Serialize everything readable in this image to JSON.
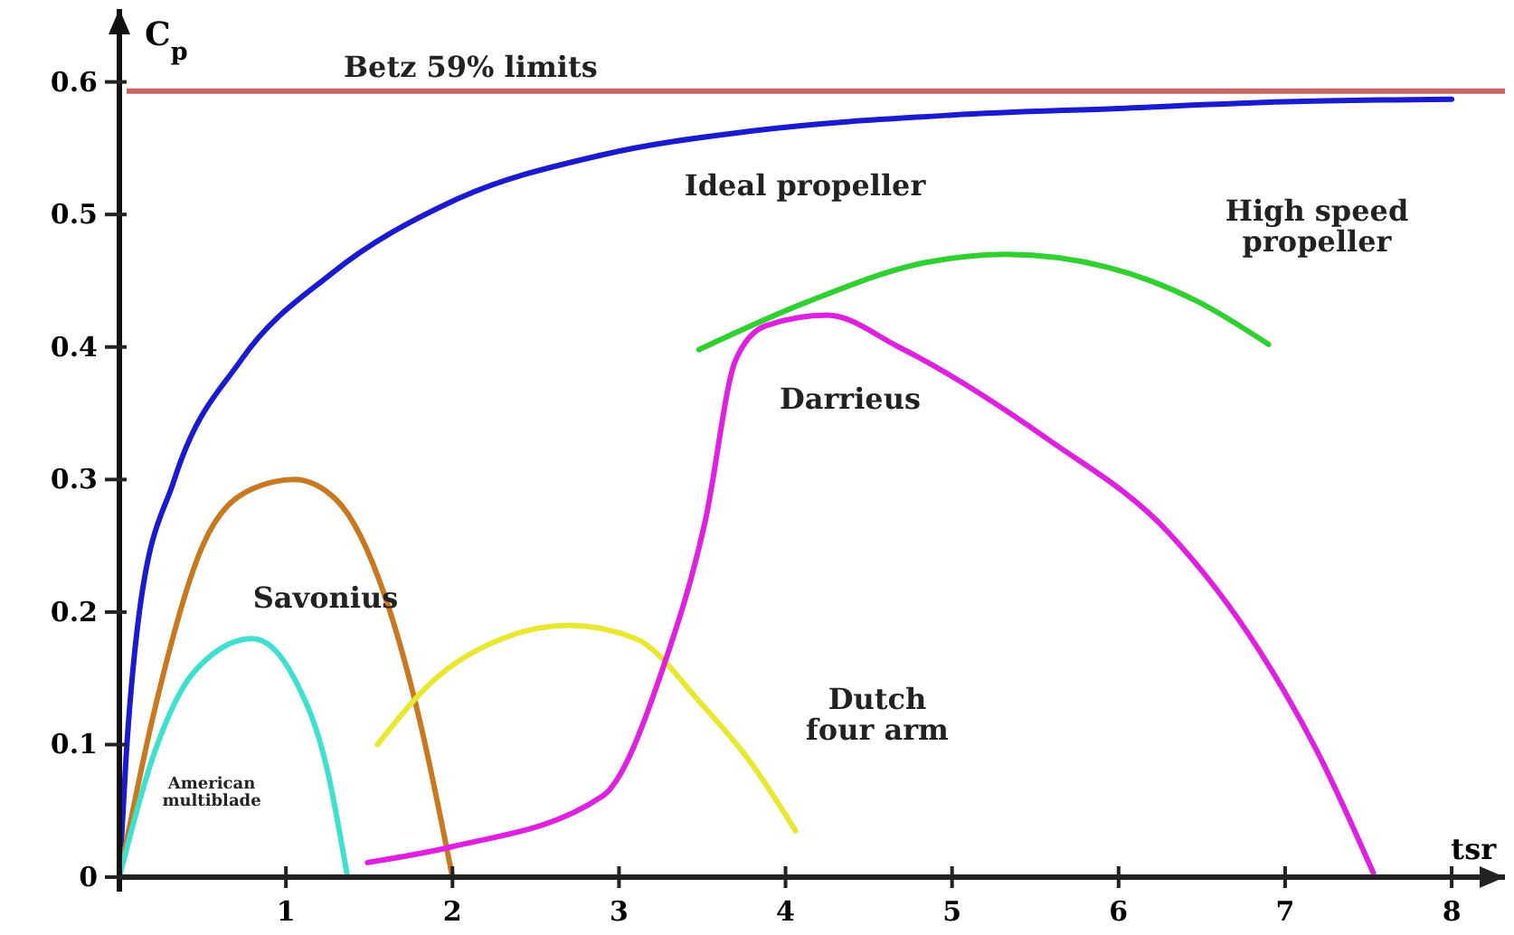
{
  "chart_data": {
    "type": "line",
    "xlabel": "tsr",
    "ylabel": "C$_{p}$",
    "xlim": [
      0,
      8.32
    ],
    "ylim": [
      0,
      0.655
    ],
    "xticks": [
      1,
      2,
      3,
      4,
      5,
      6,
      7,
      8
    ],
    "yticks": [
      0,
      0.1,
      0.2,
      0.3,
      0.4,
      0.5,
      0.6
    ],
    "grid": false,
    "marker": "none",
    "line_style": "solid",
    "series": [
      {
        "name": "Ideal propeller",
        "color": "#1a1ad0",
        "x": [
          0,
          0.04,
          0.12,
          0.33,
          0.73,
          1.27,
          2.0,
          2.9,
          3.8,
          5,
          6,
          7,
          8
        ],
        "values": [
          0,
          0.09,
          0.2,
          0.3,
          0.39,
          0.455,
          0.51,
          0.545,
          0.563,
          0.575,
          0.58,
          0.585,
          0.587
        ]
      },
      {
        "name": "Savonius",
        "color": "#c8781e",
        "x": [
          0,
          0.2,
          0.5,
          0.8,
          1.05,
          1.3,
          1.6,
          1.8,
          2.0
        ],
        "values": [
          0,
          0.12,
          0.25,
          0.293,
          0.3,
          0.285,
          0.21,
          0.12,
          0
        ]
      },
      {
        "name": "American multiblade",
        "color": "#40e0d0",
        "x": [
          0,
          0.2,
          0.45,
          0.8,
          1.05,
          1.25,
          1.37
        ],
        "values": [
          0,
          0.09,
          0.155,
          0.18,
          0.15,
          0.08,
          0
        ]
      },
      {
        "name": "Dutch four arm",
        "color": "#e8e830",
        "x": [
          1.55,
          1.9,
          2.3,
          2.7,
          3.1,
          3.5,
          3.8,
          4.06
        ],
        "values": [
          0.1,
          0.15,
          0.18,
          0.19,
          0.18,
          0.13,
          0.085,
          0.035
        ]
      },
      {
        "name": "Darrieus",
        "color": "#e020e0",
        "x": [
          1.49,
          2.0,
          2.9,
          3.27,
          3.52,
          3.7,
          3.88,
          4.25,
          4.68,
          5.58,
          6.3,
          6.85,
          7.2,
          7.53
        ],
        "values": [
          0.011,
          0.023,
          0.061,
          0.16,
          0.27,
          0.39,
          0.416,
          0.424,
          0.4,
          0.33,
          0.26,
          0.17,
          0.093,
          0.003
        ]
      },
      {
        "name": "High speed propeller",
        "color": "#30d030",
        "x": [
          3.48,
          4.13,
          4.85,
          5.33,
          5.94,
          6.48,
          6.9
        ],
        "values": [
          0.398,
          0.434,
          0.464,
          0.47,
          0.46,
          0.434,
          0.402
        ]
      }
    ],
    "ref_lines": [
      {
        "axis": "y",
        "value": 0.593,
        "label": "Betz 59% limits",
        "color": "#c86464"
      }
    ]
  }
}
